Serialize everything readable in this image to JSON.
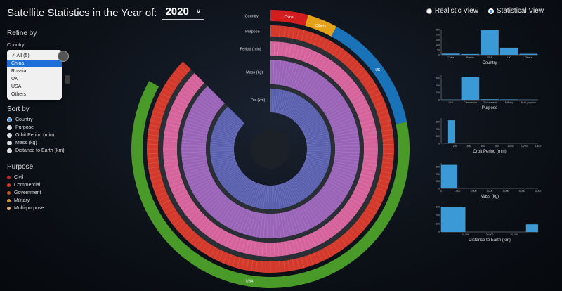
{
  "header": {
    "title": "Satellite Statistics in the Year of:",
    "year": "2020"
  },
  "view_toggle": [
    {
      "label": "Realistic View",
      "selected": false
    },
    {
      "label": "Statistical View",
      "selected": true
    }
  ],
  "refine": {
    "heading": "Refine by",
    "country_label": "Country",
    "options": [
      "All (5)",
      "China",
      "Russia",
      "UK",
      "USA",
      "Others"
    ],
    "highlighted": "China"
  },
  "sort": {
    "heading": "Sort by",
    "options": [
      "Country",
      "Purpose",
      "Orbit Period (min)",
      "Mass (kg)",
      "Distance to Earth (km)"
    ],
    "selected": "Country"
  },
  "purpose_legend": {
    "heading": "Purpose",
    "items": [
      {
        "label": "Civil",
        "color": "#b42a2a"
      },
      {
        "label": "Commercial",
        "color": "#d33a2c"
      },
      {
        "label": "Government",
        "color": "#c0541f"
      },
      {
        "label": "Military",
        "color": "#d8962c"
      },
      {
        "label": "Multi-purpose",
        "color": "#e8b07a"
      }
    ]
  },
  "sunburst": {
    "ring_labels": [
      "Country",
      "Purpose",
      "Period (min)",
      "Mass (kg)",
      "Dis.(km)"
    ],
    "country_segments": [
      {
        "label": "China",
        "share": 0.05,
        "color": "#d21e1e"
      },
      {
        "label": "Others",
        "share": 0.04,
        "color": "#e3a21a"
      },
      {
        "label": "UK",
        "share": 0.16,
        "color": "#1a72b8"
      },
      {
        "label": "USA",
        "share": 0.7,
        "color": "#4a9a2a"
      }
    ],
    "colors": {
      "purpose": "#d33a2c",
      "period": "#d6649c",
      "mass": "#9a64b8",
      "distance": "#5a5fae",
      "track": "#2a2f36"
    }
  },
  "chart_data": [
    {
      "type": "bar",
      "title": "",
      "xlabel": "Country",
      "ylabel": "",
      "categories": [
        "China",
        "Russia",
        "USA",
        "UK",
        "Others"
      ],
      "values": [
        12,
        8,
        245,
        70,
        10
      ],
      "ylim": [
        0,
        250
      ],
      "yticks": [
        "0",
        "50",
        "100",
        "150",
        "200",
        "250"
      ]
    },
    {
      "type": "bar",
      "title": "",
      "xlabel": "Purpose",
      "ylabel": "",
      "categories": [
        "Civil",
        "Commercial",
        "Government",
        "Military",
        "Multi-purpose"
      ],
      "values": [
        3,
        320,
        8,
        6,
        2
      ],
      "ylim": [
        0,
        350
      ],
      "yticks": [
        "0",
        "100",
        "200",
        "300"
      ]
    },
    {
      "type": "bar",
      "title": "",
      "xlabel": "Orbit Period (min)",
      "ylabel": "",
      "x_edges": [
        100,
        200
      ],
      "values": [
        320
      ],
      "xlim": [
        0,
        1400
      ],
      "ylim": [
        0,
        350
      ],
      "xticks": [
        "200",
        "400",
        "600",
        "800",
        "1,000",
        "1,200",
        "1,400"
      ],
      "yticks": [
        "0",
        "100",
        "200",
        "300"
      ]
    },
    {
      "type": "bar",
      "title": "",
      "xlabel": "Mass (kg)",
      "ylabel": "",
      "x_edges": [
        0,
        1000
      ],
      "values": [
        325
      ],
      "xlim": [
        0,
        6000
      ],
      "ylim": [
        0,
        350
      ],
      "xticks": [
        "0",
        "1,000",
        "2,000",
        "3,000",
        "4,000",
        "5,000",
        "6,000"
      ],
      "yticks": [
        "0",
        "100",
        "200",
        "300"
      ]
    },
    {
      "type": "bar",
      "title": "",
      "xlabel": "Distance to Earth (km)",
      "ylabel": "",
      "x_edges": [
        [
          0,
          10000
        ],
        [
          35000,
          40000
        ]
      ],
      "values": [
        300,
        90
      ],
      "xlim": [
        0,
        40000
      ],
      "ylim": [
        0,
        300
      ],
      "xticks": [
        "10,000",
        "20,000",
        "30,000"
      ],
      "yticks": [
        "0",
        "100",
        "200",
        "300"
      ]
    }
  ]
}
